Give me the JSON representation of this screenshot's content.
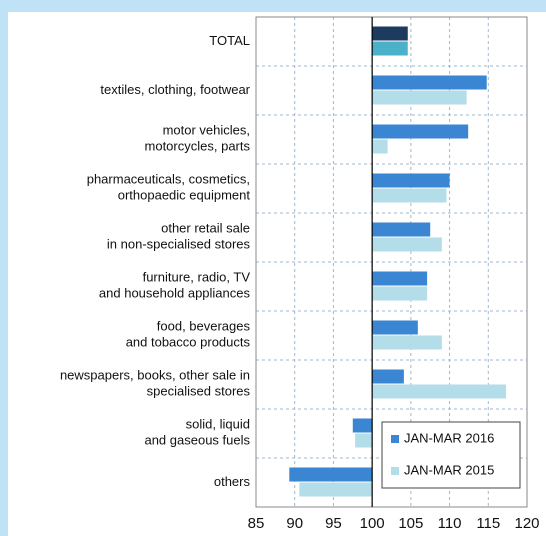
{
  "chart_data": {
    "type": "hbar",
    "categories": [
      "TOTAL",
      "textiles, clothing, footwear",
      "motor vehicles,\nmotorcycles, parts",
      "pharmaceuticals, cosmetics,\northopaedic equipment",
      "other retail sale\nin non-specialised stores",
      "furniture, radio, TV\nand household appliances",
      "food, beverages\nand tobacco products",
      "newspapers, books, other sale in\nspecialised stores",
      "solid, liquid\nand gaseous fuels",
      "others"
    ],
    "series": [
      {
        "name": "JAN-MAR 2016",
        "color": "#3a86d3",
        "first_color": "#1c3b5e",
        "values": [
          104.6,
          114.8,
          112.4,
          110.0,
          107.5,
          107.1,
          105.9,
          104.1,
          97.5,
          89.3
        ]
      },
      {
        "name": "JAN-MAR 2015",
        "color": "#b3dde9",
        "first_color": "#4bb1c8",
        "values": [
          104.6,
          112.2,
          102.0,
          109.6,
          109.0,
          107.1,
          109.0,
          117.3,
          97.8,
          90.6
        ]
      }
    ],
    "base": 100,
    "xlim": [
      85,
      120
    ],
    "xticks": [
      85,
      90,
      95,
      100,
      105,
      110,
      115,
      120
    ],
    "grid": true,
    "legend": "lower right"
  }
}
